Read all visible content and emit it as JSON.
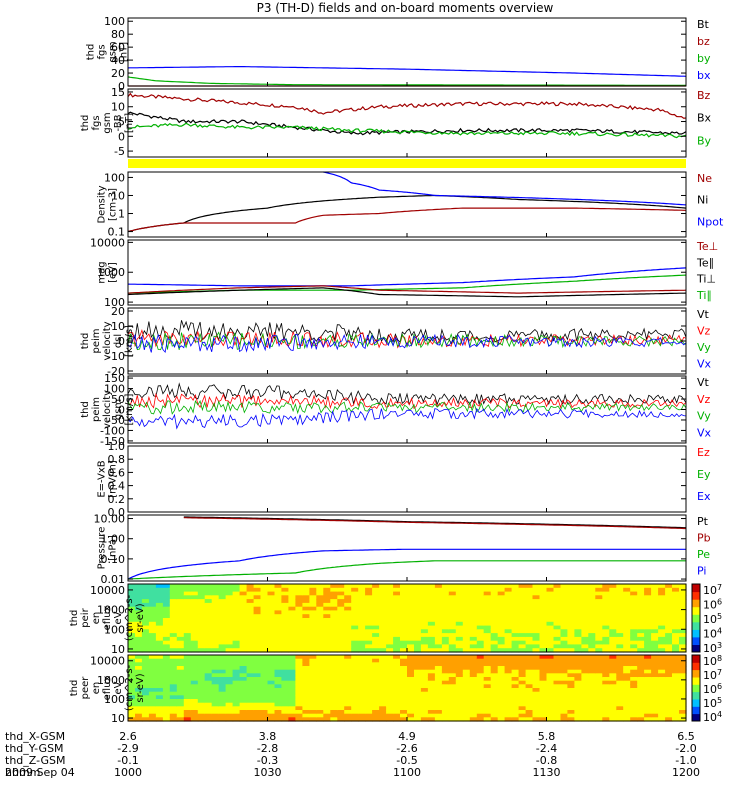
{
  "title": "P3 (TH-D) fields and on-board moments overview",
  "date_label": "2009 Sep 04",
  "chart_data": [
    {
      "type": "line",
      "ylabel": [
        "thd",
        "fgs",
        "gsm",
        "[nT]"
      ],
      "yticks": [
        "100",
        "80",
        "60",
        "40",
        "20",
        "0"
      ],
      "ylim": [
        0,
        105
      ],
      "legend": [
        {
          "name": "Bt",
          "color": "#000000"
        },
        {
          "name": "bz",
          "color": "#a00000"
        },
        {
          "name": "by",
          "color": "#00b000"
        },
        {
          "name": "bx",
          "color": "#0000ff"
        }
      ],
      "series": [
        {
          "name": "bx",
          "color": "#0000ff",
          "x": [
            0,
            0.2,
            0.5,
            0.8,
            1.0
          ],
          "y": [
            28,
            30,
            26,
            20,
            15
          ]
        },
        {
          "name": "by",
          "color": "#00b000",
          "x": [
            0,
            0.05,
            0.15,
            0.3,
            1.0
          ],
          "y": [
            14,
            8,
            4,
            2,
            1
          ]
        },
        {
          "name": "bz",
          "color": "#a00000",
          "x": [
            0,
            1.0
          ],
          "y": [
            0,
            0
          ]
        }
      ]
    },
    {
      "type": "line",
      "ylabel": [
        "thd",
        "fgs",
        "gsm",
        "-BB",
        "[nT]"
      ],
      "yticks": [
        "15",
        "10",
        "5",
        "0",
        "-5"
      ],
      "ylim": [
        -7,
        16
      ],
      "legend": [
        {
          "name": "Bz",
          "color": "#a00000"
        },
        {
          "name": "Bx",
          "color": "#000000"
        },
        {
          "name": "By",
          "color": "#00b000"
        }
      ],
      "series": [
        {
          "name": "Bz",
          "color": "#a00000",
          "x": [
            0,
            0.15,
            0.3,
            0.35,
            0.45,
            0.6,
            0.8,
            0.95,
            1.0
          ],
          "y": [
            14,
            12,
            10,
            8,
            10,
            11,
            11,
            9,
            6
          ]
        },
        {
          "name": "Bx",
          "color": "#000000",
          "x": [
            0,
            0.1,
            0.2,
            0.3,
            0.4,
            0.6,
            0.8,
            1.0
          ],
          "y": [
            8,
            5,
            5,
            3,
            1,
            2,
            2,
            1
          ]
        },
        {
          "name": "By",
          "color": "#00b000",
          "x": [
            0,
            0.1,
            0.2,
            0.3,
            0.4,
            0.6,
            0.8,
            1.0
          ],
          "y": [
            3,
            4,
            3,
            3,
            2,
            1,
            1,
            0
          ]
        }
      ]
    },
    {
      "type": "line",
      "ylabel": [
        "Density",
        "[cm-3]"
      ],
      "yticks": [
        "100",
        "10",
        "1",
        "0.1"
      ],
      "yscale": "log",
      "ylim": [
        0.05,
        200
      ],
      "legend": [
        {
          "name": "Ne",
          "color": "#a00000"
        },
        {
          "name": "Ni",
          "color": "#000000"
        },
        {
          "name": "Npot",
          "color": "#0000ff"
        }
      ],
      "series": [
        {
          "name": "Ni",
          "color": "#000000",
          "x": [
            0,
            0.1,
            0.25,
            0.35,
            0.45,
            0.55,
            0.7,
            1.0
          ],
          "y": [
            0.1,
            0.3,
            2,
            5,
            8,
            10,
            6,
            2
          ]
        },
        {
          "name": "Ne",
          "color": "#a00000",
          "x": [
            0,
            0.1,
            0.3,
            0.35,
            0.45,
            0.6,
            0.8,
            1.0
          ],
          "y": [
            0.1,
            0.3,
            0.3,
            0.8,
            1,
            2,
            2,
            1.5
          ]
        },
        {
          "name": "Npot",
          "color": "#0000ff",
          "x": [
            0.35,
            0.4,
            0.45,
            0.55,
            1.0
          ],
          "y": [
            200,
            50,
            20,
            10,
            3
          ]
        }
      ]
    },
    {
      "type": "line",
      "ylabel": [
        "mag",
        "[eV]"
      ],
      "yticks": [
        "10000",
        "1000",
        "100"
      ],
      "yscale": "log",
      "ylim": [
        80,
        12000
      ],
      "legend": [
        {
          "name": "Te⊥",
          "color": "#a00000"
        },
        {
          "name": "Te∥",
          "color": "#000000"
        },
        {
          "name": "Ti⊥",
          "color": "#000000"
        },
        {
          "name": "Ti∥",
          "color": "#00b000"
        }
      ],
      "series": [
        {
          "name": "Ti⊥",
          "color": "#0000ff",
          "x": [
            0,
            0.2,
            0.4,
            0.6,
            0.8,
            1.0
          ],
          "y": [
            400,
            350,
            350,
            450,
            700,
            1400
          ]
        },
        {
          "name": "Ti∥",
          "color": "#00b000",
          "x": [
            0,
            0.2,
            0.4,
            0.6,
            0.8,
            1.0
          ],
          "y": [
            200,
            250,
            250,
            300,
            500,
            800
          ]
        },
        {
          "name": "Te⊥",
          "color": "#a00000",
          "x": [
            0,
            0.2,
            0.35,
            0.45,
            0.7,
            1.0
          ],
          "y": [
            200,
            300,
            350,
            250,
            200,
            250
          ]
        },
        {
          "name": "Te∥",
          "color": "#000000",
          "x": [
            0,
            0.2,
            0.35,
            0.45,
            0.7,
            1.0
          ],
          "y": [
            180,
            250,
            300,
            180,
            150,
            200
          ]
        }
      ]
    },
    {
      "type": "line",
      "ylabel": [
        "thd",
        "peim",
        "velocity",
        "dsl",
        "[km/s]"
      ],
      "yticks": [
        "20",
        "10",
        "0",
        "-10",
        "-20"
      ],
      "ylim": [
        -22,
        22
      ],
      "legend": [
        {
          "name": "Vt",
          "color": "#000000"
        },
        {
          "name": "Vz",
          "color": "#ff0000"
        },
        {
          "name": "Vy",
          "color": "#00b000"
        },
        {
          "name": "Vx",
          "color": "#0000ff"
        }
      ],
      "series": [
        {
          "name": "Vt",
          "color": "#000000",
          "x": [
            0,
            0.3,
            0.6,
            1.0
          ],
          "y": [
            8,
            6,
            3,
            5
          ]
        },
        {
          "name": "Vz",
          "color": "#ff0000",
          "x": [
            0,
            0.3,
            0.6,
            1.0
          ],
          "y": [
            2,
            1,
            0,
            1
          ]
        },
        {
          "name": "Vy",
          "color": "#00b000",
          "x": [
            0,
            0.3,
            0.6,
            1.0
          ],
          "y": [
            0,
            0,
            0,
            0
          ]
        },
        {
          "name": "Vx",
          "color": "#0000ff",
          "x": [
            0,
            0.3,
            0.6,
            1.0
          ],
          "y": [
            -2,
            -1,
            0,
            -1
          ]
        }
      ]
    },
    {
      "type": "line",
      "ylabel": [
        "thd",
        "peim",
        "velocity",
        "gsm",
        "[km/s]"
      ],
      "yticks": [
        "150",
        "100",
        "50",
        "0",
        "-50",
        "-100",
        "-150"
      ],
      "ylim": [
        -160,
        160
      ],
      "legend": [
        {
          "name": "Vt",
          "color": "#000000"
        },
        {
          "name": "Vz",
          "color": "#ff0000"
        },
        {
          "name": "Vy",
          "color": "#00b000"
        },
        {
          "name": "Vx",
          "color": "#0000ff"
        }
      ],
      "series": [
        {
          "name": "Vt",
          "color": "#000000",
          "x": [
            0,
            0.3,
            0.45,
            1.0
          ],
          "y": [
            90,
            80,
            50,
            50
          ]
        },
        {
          "name": "Vz",
          "color": "#ff0000",
          "x": [
            0,
            0.3,
            0.45,
            1.0
          ],
          "y": [
            40,
            40,
            30,
            30
          ]
        },
        {
          "name": "Vy",
          "color": "#00b000",
          "x": [
            0,
            0.3,
            0.45,
            1.0
          ],
          "y": [
            10,
            10,
            10,
            10
          ]
        },
        {
          "name": "Vx",
          "color": "#0000ff",
          "x": [
            0,
            0.3,
            0.45,
            1.0
          ],
          "y": [
            -60,
            -50,
            -20,
            -20
          ]
        }
      ]
    },
    {
      "type": "line",
      "ylabel": [
        "E=-VxB",
        "[mV/m]"
      ],
      "yticks": [
        "1.0",
        "0.8",
        "0.6",
        "0.4",
        "0.2",
        "0.0"
      ],
      "ylim": [
        0,
        1
      ],
      "legend": [
        {
          "name": "Ez",
          "color": "#ff0000"
        },
        {
          "name": "Ey",
          "color": "#00b000"
        },
        {
          "name": "Ex",
          "color": "#0000ff"
        }
      ],
      "series": []
    },
    {
      "type": "line",
      "ylabel": [
        "Pressure",
        "[nPa]"
      ],
      "yticks": [
        "10.00",
        "1.00",
        "0.10",
        "0.01"
      ],
      "yscale": "log",
      "ylim": [
        0.008,
        15
      ],
      "legend": [
        {
          "name": "Pt",
          "color": "#000000"
        },
        {
          "name": "Pb",
          "color": "#a00000"
        },
        {
          "name": "Pe",
          "color": "#00b000"
        },
        {
          "name": "Pi",
          "color": "#0000ff"
        }
      ],
      "series": [
        {
          "name": "Pt",
          "color": "#000000",
          "x": [
            0.1,
            0.5,
            1.0
          ],
          "y": [
            12,
            7,
            3.5
          ]
        },
        {
          "name": "Pb",
          "color": "#a00000",
          "x": [
            0.1,
            0.5,
            1.0
          ],
          "y": [
            11,
            6.5,
            3.2
          ]
        },
        {
          "name": "Pi",
          "color": "#0000ff",
          "x": [
            0,
            0.2,
            0.35,
            0.5,
            1.0
          ],
          "y": [
            0.01,
            0.08,
            0.25,
            0.3,
            0.3
          ]
        },
        {
          "name": "Pe",
          "color": "#00b000",
          "x": [
            0,
            0.3,
            0.45,
            0.55,
            1.0
          ],
          "y": [
            0.01,
            0.02,
            0.06,
            0.08,
            0.08
          ]
        }
      ]
    },
    {
      "type": "heatmap",
      "ylabel": [
        "thd",
        "peir",
        "en",
        "eflux",
        "eV",
        "(cm^2-s-",
        "sr-eV)"
      ],
      "yticks": [
        "10000",
        "1000",
        "100",
        "10"
      ],
      "yscale": "log",
      "ylim": [
        7,
        20000
      ],
      "colorbar_ticks": [
        "10^7",
        "10^6",
        "10^5",
        "10^4",
        "10^3"
      ],
      "colormap": [
        "#000080",
        "#0050ff",
        "#00c0ff",
        "#40e0a0",
        "#80ff40",
        "#ffff00",
        "#ffa000",
        "#ff3000",
        "#c00000"
      ],
      "bands": [
        {
          "x": [
            0,
            0.08
          ],
          "level": [
            0.35,
            0.45,
            0.6,
            0.5
          ]
        },
        {
          "x": [
            0.08,
            0.2
          ],
          "level": [
            0.5,
            0.6,
            0.6,
            0.55
          ]
        },
        {
          "x": [
            0.2,
            0.4
          ],
          "level": [
            0.65,
            0.65,
            0.6,
            0.6
          ]
        },
        {
          "x": [
            0.4,
            1.0
          ],
          "level": [
            0.65,
            0.62,
            0.58,
            0.55
          ]
        }
      ]
    },
    {
      "type": "heatmap",
      "ylabel": [
        "thd",
        "peer",
        "en",
        "eflux",
        "eV",
        "(cm^2-s-",
        "sr-eV)"
      ],
      "yticks": [
        "10000",
        "1000",
        "100",
        "10"
      ],
      "yscale": "log",
      "ylim": [
        7,
        20000
      ],
      "colorbar_ticks": [
        "10^8",
        "10^7",
        "10^6",
        "10^5",
        "10^4"
      ],
      "colormap": [
        "#000080",
        "#0050ff",
        "#00c0ff",
        "#40e0a0",
        "#80ff40",
        "#ffff00",
        "#ffa000",
        "#ff3000",
        "#c00000"
      ],
      "bands": [
        {
          "x": [
            0,
            0.1
          ],
          "level": [
            0.55,
            0.5,
            0.45,
            0.7
          ]
        },
        {
          "x": [
            0.1,
            0.3
          ],
          "level": [
            0.5,
            0.45,
            0.5,
            0.75
          ]
        },
        {
          "x": [
            0.3,
            0.5
          ],
          "level": [
            0.65,
            0.6,
            0.6,
            0.7
          ]
        },
        {
          "x": [
            0.5,
            1.0
          ],
          "level": [
            0.75,
            0.65,
            0.62,
            0.65
          ]
        }
      ]
    }
  ],
  "x_axis": {
    "rows": [
      {
        "label": "thd_X-GSM",
        "values": [
          "2.6",
          "3.8",
          "4.9",
          "5.8",
          "6.5"
        ]
      },
      {
        "label": "thd_Y-GSM",
        "values": [
          "-2.9",
          "-2.8",
          "-2.6",
          "-2.4",
          "-2.0"
        ]
      },
      {
        "label": "thd_Z-GSM",
        "values": [
          "-0.1",
          "-0.3",
          "-0.5",
          "-0.8",
          "-1.0"
        ]
      },
      {
        "label": "hhmm",
        "values": [
          "1000",
          "1030",
          "1100",
          "1130",
          "1200"
        ]
      }
    ]
  }
}
